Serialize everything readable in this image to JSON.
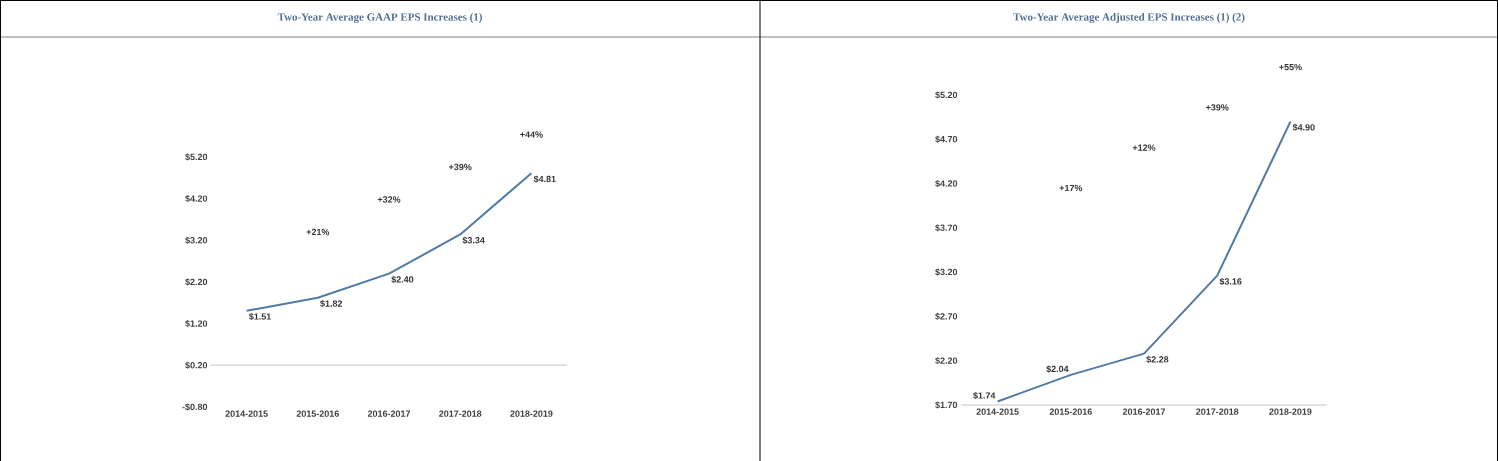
{
  "chart_data": [
    {
      "type": "line",
      "title": "Two-Year Average GAAP EPS Increases (1)",
      "categories": [
        "2014-2015",
        "2015-2016",
        "2016-2017",
        "2017-2018",
        "2018-2019"
      ],
      "values": [
        1.51,
        1.82,
        2.4,
        3.34,
        4.81
      ],
      "value_labels": [
        "$1.51",
        "$1.82",
        "$2.40",
        "$3.34",
        "$4.81"
      ],
      "color": "#4f7ba6",
      "ylim": [
        -0.8,
        5.2
      ],
      "yticks": [
        {
          "value": -0.8,
          "label": "-$0.80"
        },
        {
          "value": 0.2,
          "label": "$0.20"
        },
        {
          "value": 1.2,
          "label": "$1.20"
        },
        {
          "value": 2.2,
          "label": "$2.20"
        },
        {
          "value": 3.2,
          "label": "$3.20"
        },
        {
          "value": 4.2,
          "label": "$4.20"
        },
        {
          "value": 5.2,
          "label": "$5.20"
        }
      ],
      "ref_lines": [
        {
          "axis": "y",
          "value": 0.2,
          "color": "#d9d9d9"
        }
      ],
      "annotations": [
        "+21%",
        "+32%",
        "+39%",
        "+44%"
      ]
    },
    {
      "type": "line",
      "title": "Two-Year Average Adjusted EPS Increases (1) (2)",
      "categories": [
        "2014-2015",
        "2015-2016",
        "2016-2017",
        "2017-2018",
        "2018-2019"
      ],
      "values": [
        1.74,
        2.04,
        2.28,
        3.16,
        4.9
      ],
      "value_labels": [
        "$1.74",
        "$2.04",
        "$2.28",
        "$3.16",
        "$4.90"
      ],
      "color": "#4f7ba6",
      "ylim": [
        1.7,
        5.2
      ],
      "yticks": [
        {
          "value": 1.7,
          "label": "$1.70"
        },
        {
          "value": 2.2,
          "label": "$2.20"
        },
        {
          "value": 2.7,
          "label": "$2.70"
        },
        {
          "value": 3.2,
          "label": "$3.20"
        },
        {
          "value": 3.7,
          "label": "$3.70"
        },
        {
          "value": 4.2,
          "label": "$4.20"
        },
        {
          "value": 4.7,
          "label": "$4.70"
        },
        {
          "value": 5.2,
          "label": "$5.20"
        }
      ],
      "annotations": [
        "+17%",
        "+12%",
        "+39%",
        "+55%"
      ]
    }
  ]
}
